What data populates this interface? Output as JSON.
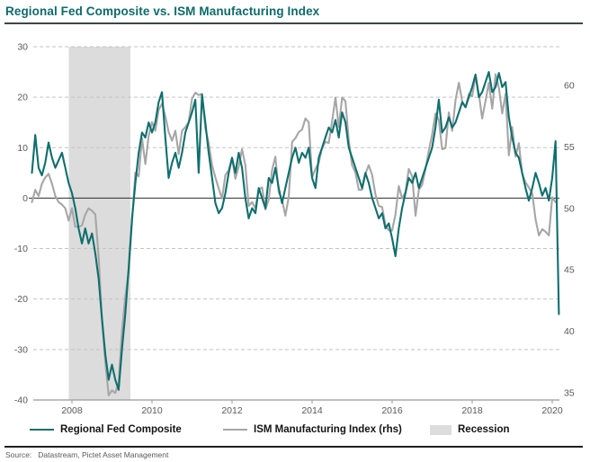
{
  "title": "Regional Fed Composite vs. ISM Manufacturing Index",
  "source": {
    "label": "Source:",
    "text": "Datastream, Pictet Asset Management"
  },
  "colors": {
    "fed_line": "#0f6f6e",
    "ism_line": "#a6a6a6",
    "recession_band": "#dcdcdc",
    "grid": "#c3c3c3",
    "zero_line": "#2b2b2b",
    "axis_line": "#999999",
    "axis_text": "#595959",
    "title_text": "#0d6b6a"
  },
  "legend": [
    {
      "label": "Regional Fed Composite",
      "swatch": "line",
      "color": "#0f6f6e"
    },
    {
      "label": "ISM Manufacturing Index (rhs)",
      "swatch": "line",
      "color": "#a6a6a6"
    },
    {
      "label": "Recession",
      "swatch": "box",
      "color": "#dcdcdc"
    }
  ],
  "chart_data": {
    "type": "line",
    "title": "Regional Fed Composite vs. ISM Manufacturing Index",
    "x_start": 2007.0,
    "x_step": 0.0833333,
    "x_range": [
      2007.0,
      2020.2
    ],
    "x_ticks": [
      2008,
      2010,
      2012,
      2014,
      2016,
      2018,
      2020
    ],
    "left_axis": {
      "ticks": [
        30,
        20,
        10,
        0,
        -10,
        -20,
        -30,
        -40
      ],
      "range": [
        -40,
        30
      ]
    },
    "right_axis": {
      "ticks": [
        60,
        55,
        50,
        45,
        40,
        35
      ],
      "range": [
        34.3,
        63.1
      ]
    },
    "grid": "dashed-horizontal",
    "zero_line": true,
    "legend_position": "bottom",
    "recession_bands": [
      [
        2007.92,
        2009.46
      ]
    ],
    "series": [
      {
        "name": "Regional Fed Composite",
        "axis": "left",
        "color": "#0f6f6e",
        "values": [
          5,
          12.5,
          6,
          4.5,
          7,
          11,
          8,
          6,
          7.5,
          9,
          6,
          3,
          1,
          -2,
          -6,
          -9,
          -6,
          -9,
          -7,
          -11,
          -16,
          -24,
          -31,
          -36,
          -33,
          -36,
          -38,
          -30,
          -23,
          -14,
          -4,
          3,
          9,
          13,
          12,
          15,
          13,
          15,
          19,
          21,
          12,
          4,
          7,
          9,
          6,
          9,
          13,
          15,
          17,
          19.5,
          5,
          20.5,
          15,
          9,
          4,
          -1,
          -3,
          -2,
          1,
          5,
          8,
          5,
          9,
          6,
          0,
          -4,
          -2,
          -3,
          2,
          0,
          -2,
          4,
          3,
          6,
          2,
          -1,
          2,
          5,
          8,
          10,
          7,
          9,
          8,
          10,
          4,
          2,
          8,
          10,
          12,
          14,
          13,
          15.5,
          12,
          17,
          15,
          10,
          8,
          6,
          4,
          2,
          5,
          3,
          0,
          -2,
          -4,
          -3,
          -6,
          -5,
          -8,
          -11.5,
          -6,
          -2,
          1,
          4,
          3,
          5,
          2,
          4,
          6,
          8,
          10,
          14,
          19.5,
          13,
          14,
          16,
          14,
          15,
          17,
          19,
          18,
          20,
          22,
          24.5,
          20,
          21,
          23,
          25,
          21,
          22,
          24.8,
          22,
          23,
          16,
          12,
          9,
          8,
          5,
          2,
          -0.5,
          2,
          5,
          3,
          0.5,
          2,
          -0.5,
          4,
          11.3,
          -23
        ]
      },
      {
        "name": "ISM Manufacturing Index (rhs)",
        "axis": "right",
        "color": "#a6a6a6",
        "values": [
          50.5,
          51.5,
          51,
          52,
          52.5,
          52.8,
          52,
          51,
          50.5,
          50.3,
          50,
          49,
          50,
          48.5,
          48.5,
          48.6,
          49.5,
          50,
          49.8,
          49.5,
          46,
          41,
          37.5,
          34.8,
          35.2,
          35,
          35.8,
          40,
          42.8,
          44.8,
          48.9,
          52.9,
          52.6,
          55.7,
          53.6,
          55.9,
          57,
          56.3,
          58,
          58.5,
          57.5,
          56.2,
          55.5,
          56.3,
          54.4,
          56.3,
          56.6,
          57,
          58.9,
          59.4,
          59.2,
          59.3,
          56.5,
          55.3,
          53.5,
          52.5,
          51.6,
          50.8,
          52.7,
          53.1,
          54.1,
          52.4,
          53.4,
          54.8,
          53.5,
          50.2,
          50.5,
          50,
          51.5,
          51.7,
          49.9,
          50.7,
          53.1,
          54.2,
          51.3,
          50.7,
          49.4,
          50.9,
          55.4,
          55.7,
          56.2,
          56.4,
          57.3,
          57,
          52.5,
          53.2,
          53.7,
          54.9,
          55.4,
          55.3,
          57.1,
          59,
          56.6,
          59,
          58.7,
          55.5,
          53.5,
          52.9,
          51.5,
          51.5,
          52.8,
          53.5,
          52.7,
          51.1,
          50.2,
          50.1,
          48.6,
          48.2,
          48.2,
          49.5,
          51.8,
          50.8,
          51.3,
          53.2,
          52.6,
          49.4,
          51.5,
          51.9,
          53.2,
          54.7,
          56,
          57.7,
          57.2,
          54.8,
          54.9,
          57.8,
          56.3,
          58.8,
          60.2,
          58.7,
          58.2,
          59.3,
          59.1,
          60.8,
          59.3,
          57.3,
          58.7,
          60.2,
          58.1,
          60.9,
          59.8,
          57.7,
          59.3,
          54.3,
          56.6,
          54.2,
          55.3,
          52.8,
          52.1,
          51.7,
          51.2,
          49.1,
          47.8,
          48.3,
          48.1,
          47.8,
          50.9,
          50.5
        ]
      }
    ]
  }
}
